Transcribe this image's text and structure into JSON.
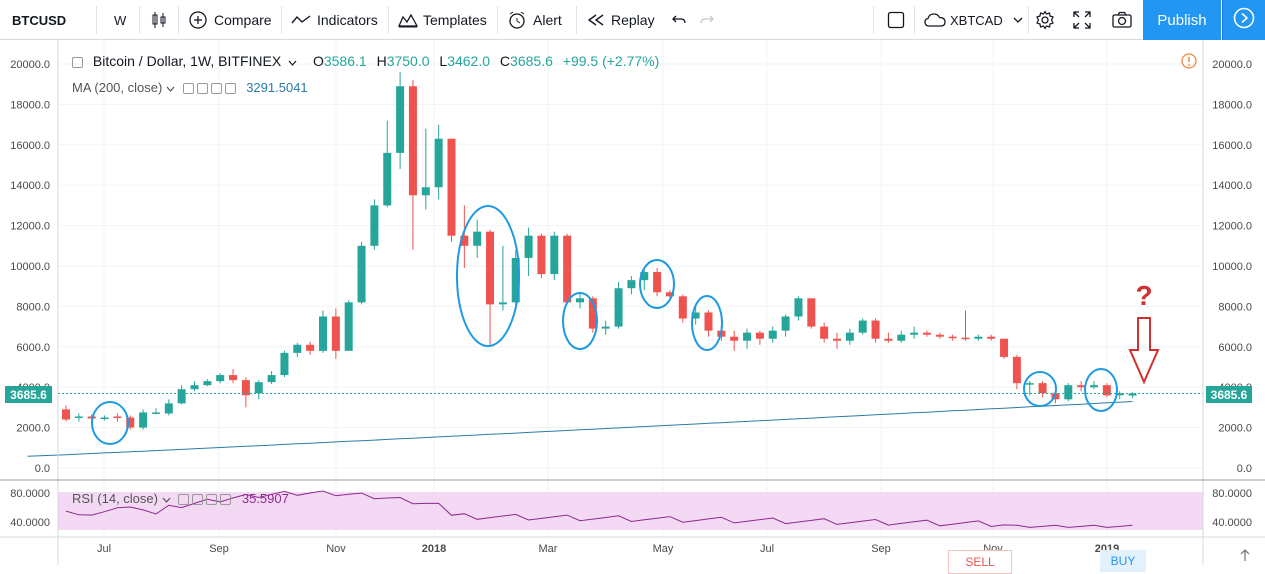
{
  "toolbar": {
    "symbol": "BTCUSD",
    "interval": "W",
    "compare": "Compare",
    "indicators": "Indicators",
    "templates": "Templates",
    "alert": "Alert",
    "replay": "Replay",
    "layout_symbol": "XBTCAD",
    "publish": "Publish"
  },
  "legend": {
    "title": "Bitcoin / Dollar, 1W, BITFINEX",
    "open_label": "O",
    "open": "3586.1",
    "high_label": "H",
    "high": "3750.0",
    "low_label": "L",
    "low": "3462.0",
    "close_label": "C",
    "close": "3685.6",
    "change": "+99.5 (+2.77%)",
    "ma_label": "MA (200, close)",
    "ma_value": "3291.5041",
    "rsi_label": "RSI (14, close)",
    "rsi_value": "35.5907"
  },
  "price_axis": [
    "20000.0",
    "18000.0",
    "16000.0",
    "14000.0",
    "12000.0",
    "10000.0",
    "8000.0",
    "6000.0",
    "4000.0",
    "2000.0",
    "0.0"
  ],
  "rsi_axis": [
    "80.0000",
    "40.0000"
  ],
  "time_axis": [
    "Jul",
    "Sep",
    "Nov",
    "2018",
    "Mar",
    "May",
    "Jul",
    "Sep",
    "Nov",
    "2019"
  ],
  "last_price": "3685.6",
  "annotation": "?",
  "trade": {
    "sell": "SELL",
    "buy": "BUY"
  },
  "colors": {
    "up": "#26a69a",
    "down": "#ef5350",
    "ma": "#2a7ca6",
    "rsi": "#8e2a8e",
    "circle": "#1e9be0",
    "arrow": "#d32f2f",
    "publish": "#2196f3"
  },
  "chart_data": {
    "type": "candlestick",
    "interval": "1W",
    "ylim": [
      0,
      20500
    ],
    "candles": [
      [
        2900,
        2400,
        3100,
        2300
      ],
      [
        2500,
        2550,
        2700,
        2300
      ],
      [
        2550,
        2450,
        2650,
        2300
      ],
      [
        2450,
        2500,
        2600,
        2350
      ],
      [
        2550,
        2500,
        2700,
        2300
      ],
      [
        2500,
        2000,
        2600,
        1900
      ],
      [
        2000,
        2750,
        2900,
        1900
      ],
      [
        2750,
        2750,
        2950,
        2650
      ],
      [
        2700,
        3200,
        3400,
        2600
      ],
      [
        3200,
        3900,
        4100,
        3150
      ],
      [
        3900,
        4100,
        4300,
        3800
      ],
      [
        4100,
        4300,
        4400,
        4050
      ],
      [
        4300,
        4600,
        4700,
        4200
      ],
      [
        4600,
        4350,
        4900,
        4200
      ],
      [
        4350,
        3600,
        4500,
        3000
      ],
      [
        3700,
        4250,
        4350,
        3400
      ],
      [
        4250,
        4600,
        4800,
        4150
      ],
      [
        4600,
        5700,
        5800,
        4500
      ],
      [
        5700,
        6100,
        6200,
        5500
      ],
      [
        6100,
        5800,
        6250,
        5600
      ],
      [
        5800,
        7500,
        7800,
        5700
      ],
      [
        7500,
        5800,
        7900,
        5400
      ],
      [
        5800,
        8200,
        8300,
        5800
      ],
      [
        8200,
        11000,
        11200,
        8100
      ],
      [
        11000,
        13000,
        13300,
        10800
      ],
      [
        13000,
        15600,
        17200,
        12900
      ],
      [
        15600,
        18900,
        19600,
        14800
      ],
      [
        18900,
        13500,
        19200,
        10800
      ],
      [
        13500,
        13900,
        16800,
        12800
      ],
      [
        13900,
        16300,
        17000,
        13300
      ],
      [
        16300,
        11500,
        16300,
        11200
      ],
      [
        11500,
        11000,
        13000,
        9900
      ],
      [
        11000,
        11700,
        12300,
        10400
      ],
      [
        11700,
        8100,
        11800,
        6100
      ],
      [
        8100,
        8200,
        11000,
        7800
      ],
      [
        8200,
        10400,
        10800,
        7900
      ],
      [
        10400,
        11500,
        11900,
        9500
      ],
      [
        11500,
        9600,
        11600,
        9400
      ],
      [
        9600,
        11500,
        11700,
        9300
      ],
      [
        11500,
        8200,
        11600,
        8200
      ],
      [
        8200,
        8400,
        8700,
        7900
      ],
      [
        8400,
        6900,
        8500,
        6700
      ],
      [
        6900,
        7000,
        7300,
        6600
      ],
      [
        7000,
        8900,
        9200,
        6900
      ],
      [
        8900,
        9300,
        9500,
        8600
      ],
      [
        9300,
        9700,
        9900,
        8800
      ],
      [
        9700,
        8700,
        9900,
        8500
      ],
      [
        8700,
        8500,
        8800,
        8300
      ],
      [
        8500,
        7400,
        8600,
        7200
      ],
      [
        7400,
        7700,
        8100,
        7100
      ],
      [
        7700,
        6800,
        7800,
        6500
      ],
      [
        6800,
        6500,
        7000,
        6300
      ],
      [
        6500,
        6300,
        6800,
        5800
      ],
      [
        6300,
        6700,
        6900,
        5900
      ],
      [
        6700,
        6400,
        6800,
        6100
      ],
      [
        6400,
        6800,
        7000,
        6200
      ],
      [
        6800,
        7500,
        7600,
        6500
      ],
      [
        7500,
        8400,
        8500,
        7300
      ],
      [
        8400,
        7000,
        8400,
        6900
      ],
      [
        7000,
        6400,
        7200,
        6200
      ],
      [
        6400,
        6300,
        6700,
        5900
      ],
      [
        6300,
        6700,
        6900,
        6100
      ],
      [
        6700,
        7300,
        7400,
        6600
      ],
      [
        7300,
        6400,
        7400,
        6200
      ],
      [
        6400,
        6300,
        6700,
        6200
      ],
      [
        6300,
        6600,
        6800,
        6200
      ],
      [
        6600,
        6700,
        7000,
        6400
      ],
      [
        6700,
        6600,
        6800,
        6500
      ],
      [
        6600,
        6500,
        6700,
        6400
      ],
      [
        6500,
        6450,
        6600,
        6300
      ],
      [
        6450,
        6400,
        7800,
        6300
      ],
      [
        6400,
        6500,
        6600,
        6300
      ],
      [
        6500,
        6400,
        6600,
        6300
      ],
      [
        6400,
        5500,
        6400,
        5400
      ],
      [
        5500,
        4200,
        5600,
        3900
      ],
      [
        4200,
        4200,
        4300,
        3600
      ],
      [
        4200,
        3700,
        4300,
        3500
      ],
      [
        3700,
        3400,
        3800,
        3200
      ],
      [
        3400,
        4100,
        4200,
        3300
      ],
      [
        4100,
        4000,
        4300,
        3800
      ],
      [
        4000,
        4100,
        4300,
        3900
      ],
      [
        4100,
        3600,
        4200,
        3500
      ],
      [
        3600,
        3700,
        3800,
        3400
      ],
      [
        3586.1,
        3685.6,
        3750,
        3462
      ]
    ],
    "ma_200": [
      580,
      2760,
      2160,
      3291.5
    ],
    "rsi": {
      "upper": 70,
      "lower": 30,
      "last": 35.5907
    }
  }
}
